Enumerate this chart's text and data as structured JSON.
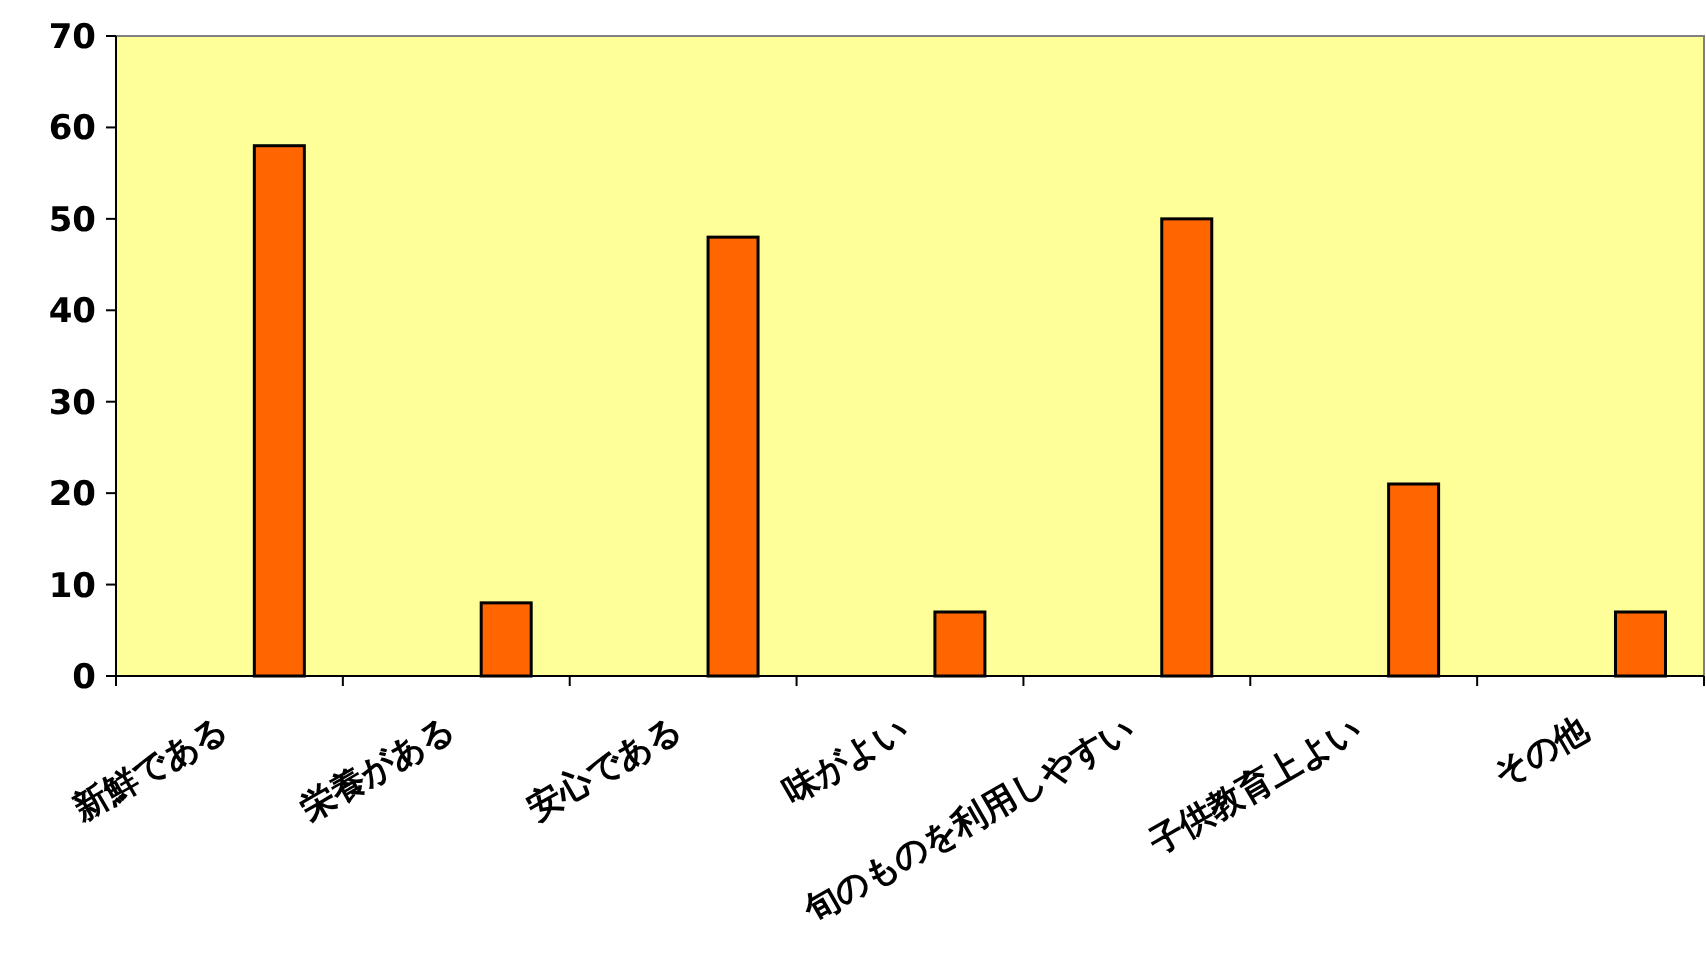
{
  "chart_data": {
    "type": "bar",
    "categories": [
      "新鮮である",
      "栄養がある",
      "安心である",
      "味がよい",
      "旬のものを利用しやすい",
      "子供教育上よい",
      "その他"
    ],
    "values": [
      58,
      8,
      48,
      7,
      50,
      21,
      7
    ],
    "color": "#ff6600",
    "ylim": [
      0,
      70
    ],
    "yticks": [
      0,
      10,
      20,
      30,
      40,
      50,
      60,
      70
    ],
    "grid": false
  }
}
